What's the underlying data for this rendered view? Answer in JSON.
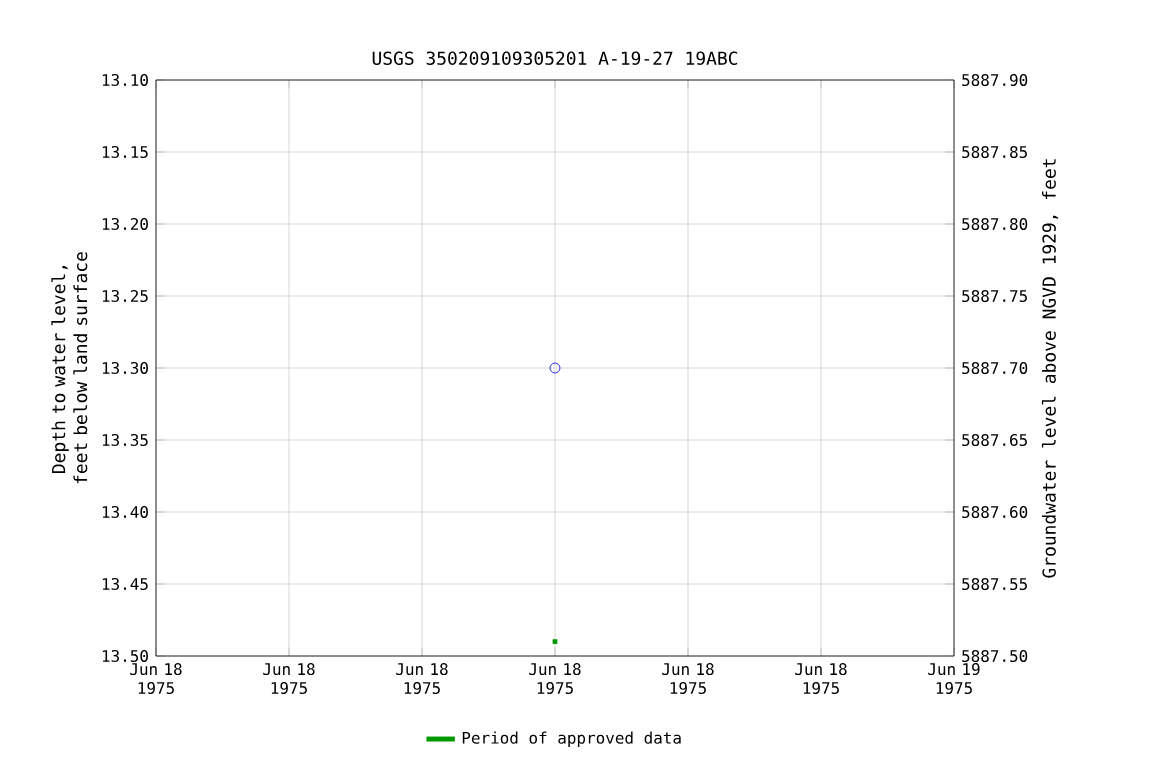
{
  "chart_data": {
    "type": "scatter",
    "title": "USGS 350209109305201 A-19-27 19ABC",
    "ylabel": "Depth to water level, feet below land surface",
    "y2label": "Groundwater level above NGVD 1929, feet",
    "xlim": [
      "1975-06-18T00:00",
      "1975-06-19T00:00"
    ],
    "xticks": [
      {
        "value": "1975-06-18T00:00",
        "label": "Jun 18 1975"
      },
      {
        "value": "1975-06-18T04:00",
        "label": "Jun 18 1975"
      },
      {
        "value": "1975-06-18T08:00",
        "label": "Jun 18 1975"
      },
      {
        "value": "1975-06-18T12:00",
        "label": "Jun 18 1975"
      },
      {
        "value": "1975-06-18T16:00",
        "label": "Jun 18 1975"
      },
      {
        "value": "1975-06-18T20:00",
        "label": "Jun 18 1975"
      },
      {
        "value": "1975-06-19T00:00",
        "label": "Jun 19 1975"
      }
    ],
    "ylim": [
      13.5,
      13.1
    ],
    "yticks": [
      {
        "value": 13.1,
        "label": "13.10"
      },
      13.15,
      {
        "value": 13.2,
        "label": "13.20"
      },
      13.25,
      {
        "value": 13.3,
        "label": "13.30"
      },
      13.35,
      {
        "value": 13.4,
        "label": "13.40"
      },
      13.45,
      {
        "value": 13.5,
        "label": "13.50"
      }
    ],
    "y2lim": [
      5887.5,
      5887.9
    ],
    "y2ticks": [
      {
        "value": 5887.5,
        "label": "5887.50"
      },
      5887.55,
      {
        "value": 5887.6,
        "label": "5887.60"
      },
      5887.65,
      {
        "value": 5887.7,
        "label": "5887.70"
      },
      5887.75,
      {
        "value": 5887.8,
        "label": "5887.80"
      },
      5887.85,
      {
        "value": 5887.9,
        "label": "5887.90"
      }
    ],
    "grid": true,
    "legend": "bottom",
    "series": [
      {
        "marker": "circle",
        "color": "#0000ff",
        "x": [
          "1975-06-18T12:00"
        ],
        "values": [
          13.3
        ]
      },
      {
        "marker": "square",
        "name": "Period of approved data",
        "color": "#009900",
        "x": [
          "1975-06-18T12:00"
        ],
        "values": [
          13.49
        ]
      }
    ]
  }
}
